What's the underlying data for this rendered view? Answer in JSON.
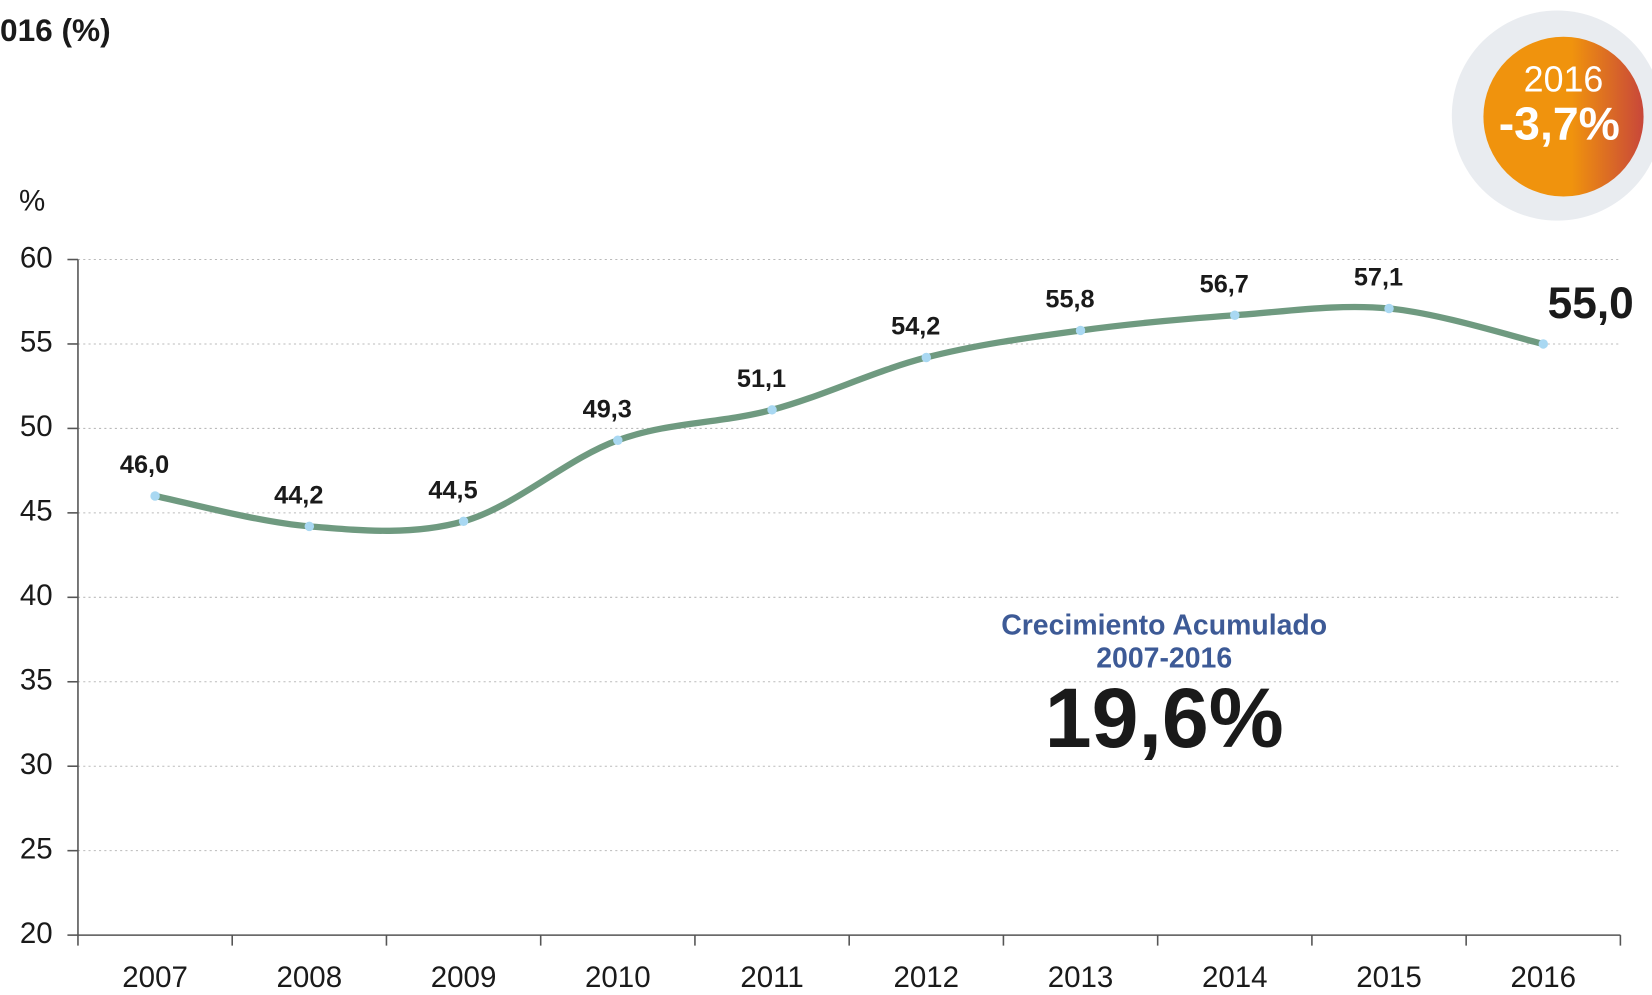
{
  "chart_data": {
    "type": "line",
    "title": "016 (%)",
    "ylabel": "%",
    "categories": [
      "2007",
      "2008",
      "2009",
      "2010",
      "2011",
      "2012",
      "2013",
      "2014",
      "2015",
      "2016"
    ],
    "series": [
      {
        "name": "%",
        "color": "#6f9a80",
        "values": [
          46.0,
          44.2,
          44.5,
          49.3,
          51.1,
          54.2,
          55.8,
          56.7,
          57.1,
          55.0
        ],
        "value_labels": [
          "46,0",
          "44,2",
          "44,5",
          "49,3",
          "51,1",
          "54,2",
          "55,8",
          "56,7",
          "57,1",
          "55,0"
        ]
      }
    ],
    "ylim": [
      20,
      60
    ],
    "yticks": [
      20,
      25,
      30,
      35,
      40,
      45,
      50,
      55,
      60
    ],
    "grid": true,
    "badge": {
      "year": "2016",
      "value": "-3,7%"
    },
    "annotation": {
      "line1": "Crecimiento Acumulado",
      "line2": "2007-2016",
      "value": "19,6%"
    }
  }
}
